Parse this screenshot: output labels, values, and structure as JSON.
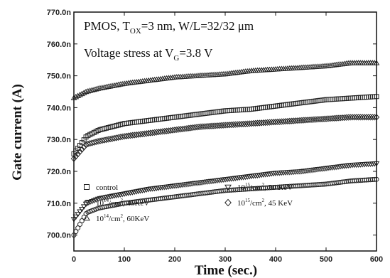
{
  "chart_data": {
    "type": "scatter",
    "xlabel": "Time (sec.)",
    "ylabel": "Gate current (A)",
    "xlim": [
      0,
      600
    ],
    "ylim": [
      695,
      770
    ],
    "x_ticks": [
      "0",
      "100",
      "200",
      "300",
      "400",
      "500",
      "600"
    ],
    "y_ticks": [
      "700.0n",
      "710.0n",
      "720.0n",
      "730.0n",
      "740.0n",
      "750.0n",
      "760.0n",
      "770.0n"
    ],
    "annotation_line1": {
      "a": "PMOS, T",
      "b": "OX",
      "c": "=3 nm, W/L=32/32 μm"
    },
    "annotation_line2": {
      "a": "Voltage stress at V",
      "b": "G",
      "c": "=3.8 V"
    },
    "legend_placement": "bottom",
    "legend": [
      {
        "marker": "square",
        "text": "control"
      },
      {
        "marker": "circle",
        "a": "10",
        "sup": "14",
        "b": "/cm",
        "sup2": "2",
        "c": ", 45KeV"
      },
      {
        "marker": "triangle-up",
        "a": "10",
        "sup": "14",
        "b": "/cm",
        "sup2": "2",
        "c": ", 60KeV"
      },
      {
        "marker": "triangle-down",
        "a": "10",
        "sup": "15",
        "b": "/cm",
        "sup2": "2",
        "c": ", 30 KeV"
      },
      {
        "marker": "diamond",
        "a": "10",
        "sup": "15",
        "b": "/cm",
        "sup2": "2",
        "c": ", 45 KeV"
      }
    ],
    "series": [
      {
        "marker": "square",
        "x": [
          0,
          25,
          50,
          100,
          150,
          200,
          250,
          300,
          350,
          400,
          450,
          500,
          550,
          600
        ],
        "y": [
          725.5,
          731,
          733,
          735,
          736,
          737,
          738,
          739,
          739.5,
          740.5,
          741.5,
          742.5,
          743,
          743.5
        ]
      },
      {
        "marker": "circle",
        "x": [
          0,
          25,
          50,
          100,
          150,
          200,
          250,
          300,
          350,
          400,
          450,
          500,
          550,
          600
        ],
        "y": [
          700,
          707,
          708.5,
          710,
          711,
          712,
          713,
          714,
          714.5,
          715,
          715.5,
          716,
          717,
          717.5
        ]
      },
      {
        "marker": "triangle-up",
        "x": [
          0,
          25,
          50,
          100,
          150,
          200,
          250,
          300,
          350,
          400,
          450,
          500,
          550,
          600
        ],
        "y": [
          743,
          745,
          746,
          747.5,
          748.5,
          749.5,
          750,
          750.5,
          751.5,
          752,
          752.5,
          753,
          754,
          754
        ]
      },
      {
        "marker": "triangle-down",
        "x": [
          0,
          25,
          50,
          100,
          150,
          200,
          250,
          300,
          350,
          400,
          450,
          500,
          550,
          600
        ],
        "y": [
          705,
          710,
          711.5,
          713,
          714.5,
          715.5,
          716.5,
          717.5,
          718.5,
          719.5,
          720,
          721,
          722,
          722.5
        ]
      },
      {
        "marker": "diamond",
        "x": [
          0,
          25,
          50,
          100,
          150,
          200,
          250,
          300,
          350,
          400,
          450,
          500,
          550,
          600
        ],
        "y": [
          724,
          728.5,
          729.5,
          731,
          732,
          733,
          734,
          734.5,
          735,
          735.5,
          736,
          736.5,
          737,
          737
        ]
      }
    ]
  }
}
